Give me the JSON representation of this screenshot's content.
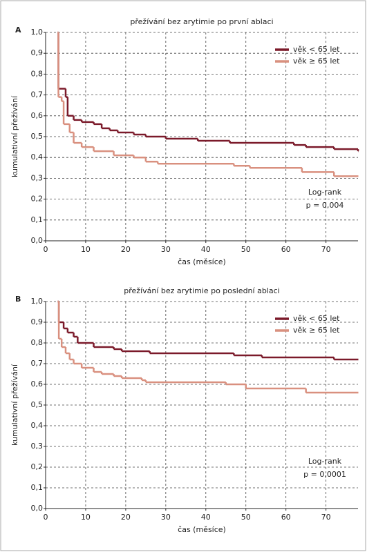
{
  "chart_data": [
    {
      "type": "line",
      "step": true,
      "panel": "A",
      "title": "přežívání bez arytimie po první ablaci",
      "xlabel": "čas (měsíce)",
      "ylabel": "kumulativní přežívání",
      "xlim": [
        0,
        78
      ],
      "ylim": [
        0,
        1
      ],
      "xticks": [
        0,
        10,
        20,
        30,
        40,
        50,
        60,
        70
      ],
      "yticks": [
        {
          "value": 0,
          "label": "0,0"
        },
        {
          "value": 0.1,
          "label": "0,1"
        },
        {
          "value": 0.2,
          "label": "0,2"
        },
        {
          "value": 0.3,
          "label": "0,3"
        },
        {
          "value": 0.4,
          "label": "0,4"
        },
        {
          "value": 0.5,
          "label": "0,5"
        },
        {
          "value": 0.6,
          "label": "0,6"
        },
        {
          "value": 0.7,
          "label": "0,7"
        },
        {
          "value": 0.8,
          "label": "0,8"
        },
        {
          "value": 0.9,
          "label": "0,9"
        },
        {
          "value": 1,
          "label": "1,0"
        }
      ],
      "grid": true,
      "legend": "upper right",
      "annotations": [
        "Log-rank",
        "p = 0,004"
      ],
      "series": [
        {
          "name": "věk < 65 let",
          "color": "#7b1a2a",
          "x": [
            3,
            3.2,
            5,
            5.5,
            7,
            9,
            12,
            14,
            16,
            18,
            22,
            25,
            30,
            38,
            46,
            62,
            65,
            72,
            78
          ],
          "values": [
            1,
            0.73,
            0.69,
            0.6,
            0.58,
            0.57,
            0.56,
            0.54,
            0.53,
            0.52,
            0.51,
            0.5,
            0.49,
            0.48,
            0.47,
            0.46,
            0.45,
            0.44,
            0.43
          ]
        },
        {
          "name": "věk ≥ 65 let",
          "color": "#d9907f",
          "x": [
            3,
            3.2,
            4,
            4.5,
            6,
            7,
            9,
            12,
            17,
            22,
            25,
            28,
            47,
            51,
            64,
            72,
            78
          ],
          "values": [
            1,
            0.69,
            0.67,
            0.56,
            0.52,
            0.47,
            0.45,
            0.43,
            0.41,
            0.4,
            0.38,
            0.37,
            0.36,
            0.35,
            0.33,
            0.31,
            0.31
          ]
        }
      ]
    },
    {
      "type": "line",
      "step": true,
      "panel": "B",
      "title": "přežívání bez arytimie po poslední ablaci",
      "xlabel": "čas (měsíce)",
      "ylabel": "kumulativní přežívání",
      "xlim": [
        0,
        78
      ],
      "ylim": [
        0,
        1
      ],
      "xticks": [
        0,
        10,
        20,
        30,
        40,
        50,
        60,
        70
      ],
      "yticks": [
        {
          "value": 0,
          "label": "0,0"
        },
        {
          "value": 0.1,
          "label": "0,1"
        },
        {
          "value": 0.2,
          "label": "0,2"
        },
        {
          "value": 0.3,
          "label": "0,3"
        },
        {
          "value": 0.4,
          "label": "0,4"
        },
        {
          "value": 0.5,
          "label": "0,5"
        },
        {
          "value": 0.6,
          "label": "0,6"
        },
        {
          "value": 0.7,
          "label": "0,7"
        },
        {
          "value": 0.8,
          "label": "0,8"
        },
        {
          "value": 0.9,
          "label": "0,9"
        },
        {
          "value": 1,
          "label": "1,0"
        }
      ],
      "grid": true,
      "legend": "upper right",
      "annotations": [
        "Log-rank",
        "p = 0,0001"
      ],
      "series": [
        {
          "name": "věk < 65 let",
          "color": "#7b1a2a",
          "x": [
            3,
            3.3,
            4.5,
            5.5,
            7,
            8,
            12,
            17,
            19,
            26,
            47,
            54,
            72,
            78
          ],
          "values": [
            1,
            0.9,
            0.87,
            0.85,
            0.83,
            0.8,
            0.78,
            0.77,
            0.76,
            0.75,
            0.74,
            0.73,
            0.72,
            0.72
          ]
        },
        {
          "name": "věk ≥ 65 let",
          "color": "#d9907f",
          "x": [
            3,
            3.3,
            4,
            5,
            6,
            7,
            9,
            12,
            14,
            17,
            19,
            24,
            25,
            45,
            50,
            65,
            78
          ],
          "values": [
            1,
            0.82,
            0.78,
            0.75,
            0.72,
            0.7,
            0.68,
            0.66,
            0.65,
            0.64,
            0.63,
            0.62,
            0.61,
            0.6,
            0.58,
            0.56,
            0.56
          ]
        }
      ]
    }
  ]
}
